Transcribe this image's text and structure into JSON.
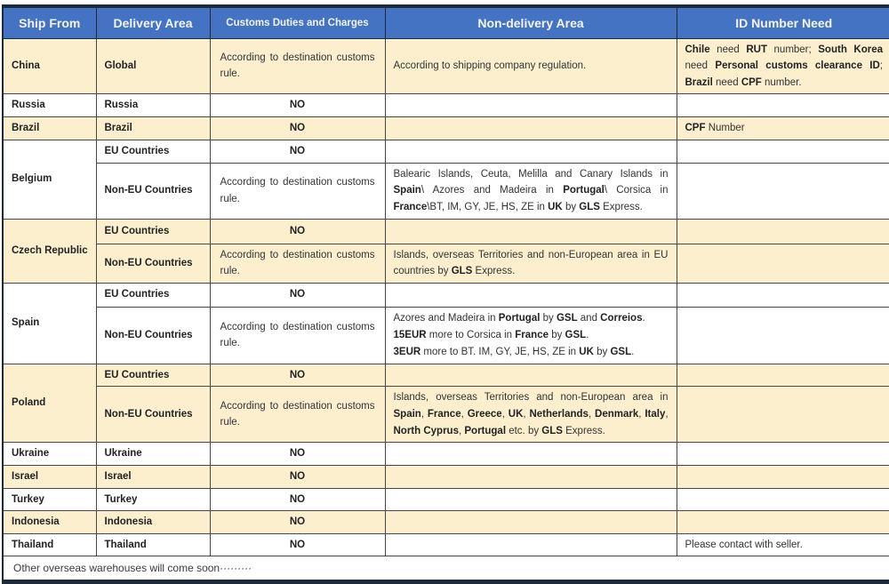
{
  "colors": {
    "header_bg": "#4573c4",
    "header_text": "#f2f6fc",
    "row_alt_bg": "#fbefce",
    "outer_border": "#1d2a3a",
    "inner_border": "#474747"
  },
  "header": {
    "ship_from": "Ship From",
    "delivery_area": "Delivery Area",
    "customs": "Customs Duties and Charges",
    "non_delivery": "Non-delivery Area",
    "id_need": "ID Number Need"
  },
  "common": {
    "no": "NO",
    "according_customs": "According to destination customs rule.",
    "eu": "EU Countries",
    "non_eu": "Non-EU Countries"
  },
  "rows": {
    "china": {
      "ship": "China",
      "area": "Global",
      "non_delivery": "According to shipping company regulation.",
      "id_rich": [
        {
          "t": "Chile",
          "b": true
        },
        {
          "t": " need "
        },
        {
          "t": "RUT",
          "b": true
        },
        {
          "t": " number; "
        },
        {
          "t": "South Korea",
          "b": true
        },
        {
          "t": " need "
        },
        {
          "t": "Personal customs clearance ID",
          "b": true
        },
        {
          "t": "; "
        },
        {
          "t": "Brazil",
          "b": true
        },
        {
          "t": " need "
        },
        {
          "t": "CPF",
          "b": true
        },
        {
          "t": " number."
        }
      ]
    },
    "russia": {
      "ship": "Russia",
      "area": "Russia"
    },
    "brazil": {
      "ship": "Brazil",
      "area": "Brazil",
      "id_rich": [
        {
          "t": "CPF",
          "b": true
        },
        {
          "t": " Number"
        }
      ]
    },
    "belgium": {
      "ship": "Belgium",
      "non_delivery_rich": [
        {
          "t": "Balearic Islands, Ceuta, Melilla and Canary Islands in "
        },
        {
          "t": "Spain",
          "b": true
        },
        {
          "t": "\\ Azores and Madeira in "
        },
        {
          "t": "Portugal",
          "b": true
        },
        {
          "t": "\\ Corsica in "
        },
        {
          "t": "France",
          "b": true
        },
        {
          "t": "\\BT, IM, GY, JE, HS, ZE in "
        },
        {
          "t": "UK",
          "b": true
        },
        {
          "t": " by "
        },
        {
          "t": "GLS",
          "b": true
        },
        {
          "t": " Express."
        }
      ]
    },
    "czech": {
      "ship": "Czech Republic",
      "non_delivery_rich": [
        {
          "t": "Islands, overseas Territories and non-European area in EU countries by "
        },
        {
          "t": "GLS",
          "b": true
        },
        {
          "t": " Express."
        }
      ]
    },
    "spain": {
      "ship": "Spain",
      "non_delivery_rich": [
        {
          "t": "Azores and Madeira in "
        },
        {
          "t": "Portugal",
          "b": true
        },
        {
          "t": " by "
        },
        {
          "t": "GSL",
          "b": true
        },
        {
          "t": " and "
        },
        {
          "t": "Correios",
          "b": true
        },
        {
          "t": "."
        },
        {
          "br": true
        },
        {
          "t": "15EUR",
          "b": true
        },
        {
          "t": " more to Corsica in "
        },
        {
          "t": "France",
          "b": true
        },
        {
          "t": " by "
        },
        {
          "t": "GSL",
          "b": true
        },
        {
          "t": "."
        },
        {
          "br": true
        },
        {
          "t": "3EUR",
          "b": true
        },
        {
          "t": " more to BT. IM, GY, JE, HS, ZE in "
        },
        {
          "t": "UK",
          "b": true
        },
        {
          "t": " by "
        },
        {
          "t": "GSL",
          "b": true
        },
        {
          "t": "."
        }
      ]
    },
    "poland": {
      "ship": "Poland",
      "non_delivery_rich": [
        {
          "t": "Islands, overseas Territories and non-European area in "
        },
        {
          "t": "Spain",
          "b": true
        },
        {
          "t": ", "
        },
        {
          "t": "France",
          "b": true
        },
        {
          "t": ", "
        },
        {
          "t": "Greece",
          "b": true
        },
        {
          "t": ", "
        },
        {
          "t": "UK",
          "b": true
        },
        {
          "t": ", "
        },
        {
          "t": "Netherlands",
          "b": true
        },
        {
          "t": ", "
        },
        {
          "t": "Denmark",
          "b": true
        },
        {
          "t": ", "
        },
        {
          "t": "Italy",
          "b": true
        },
        {
          "t": ", "
        },
        {
          "t": "North Cyprus",
          "b": true
        },
        {
          "t": ", "
        },
        {
          "t": "Portugal",
          "b": true
        },
        {
          "t": " etc. by "
        },
        {
          "t": "GLS",
          "b": true
        },
        {
          "t": " Express."
        }
      ]
    },
    "ukraine": {
      "ship": "Ukraine",
      "area": "Ukraine"
    },
    "israel": {
      "ship": "Israel",
      "area": "Israel"
    },
    "turkey": {
      "ship": "Turkey",
      "area": "Turkey"
    },
    "indonesia": {
      "ship": "Indonesia",
      "area": "Indonesia"
    },
    "thailand": {
      "ship": "Thailand",
      "area": "Thailand",
      "id": "Please contact with seller."
    }
  },
  "footer": {
    "note": "Other overseas warehouses will come soon·········"
  }
}
